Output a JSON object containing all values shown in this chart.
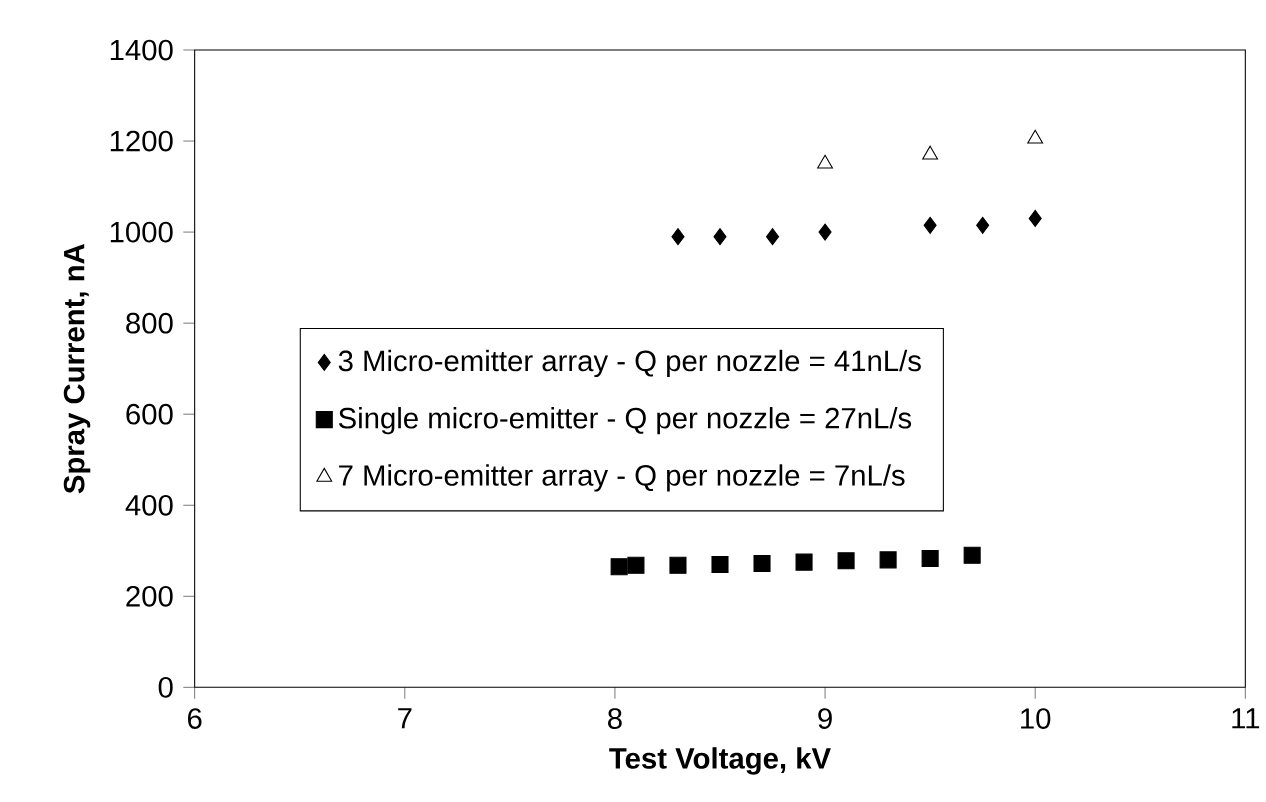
{
  "chart_data": {
    "type": "scatter",
    "xlabel": "Test Voltage, kV",
    "ylabel": "Spray Current, nA",
    "xlim": [
      6,
      11
    ],
    "xticks": [
      6,
      7,
      8,
      9,
      10,
      11
    ],
    "ylim": [
      0,
      1400
    ],
    "yticks": [
      0,
      200,
      400,
      600,
      800,
      1000,
      1200,
      1400
    ],
    "grid": false,
    "legend": "left",
    "series": [
      {
        "name": "3 Micro-emitter array - Q per nozzle = 41nL/s",
        "color": "#000000",
        "marker": "diamond",
        "x": [
          8.3,
          8.5,
          8.75,
          9,
          9.5,
          9.75,
          10
        ],
        "values": [
          990,
          990,
          990,
          1000,
          1015,
          1015,
          1030
        ]
      },
      {
        "name": "Single micro-emitter - Q per nozzle = 27nL/s",
        "color": "#000000",
        "marker": "square",
        "x": [
          8.02,
          8.1,
          8.3,
          8.5,
          8.7,
          8.9,
          9.1,
          9.3,
          9.5,
          9.7
        ],
        "values": [
          265,
          268,
          268,
          270,
          272,
          275,
          278,
          280,
          283,
          290
        ]
      },
      {
        "name": "7 Micro-emitter array - Q per nozzle = 7nL/s",
        "color": "#000000",
        "marker": "triangle",
        "x": [
          9,
          9.5,
          10
        ],
        "values": [
          1150,
          1170,
          1205
        ]
      }
    ]
  }
}
